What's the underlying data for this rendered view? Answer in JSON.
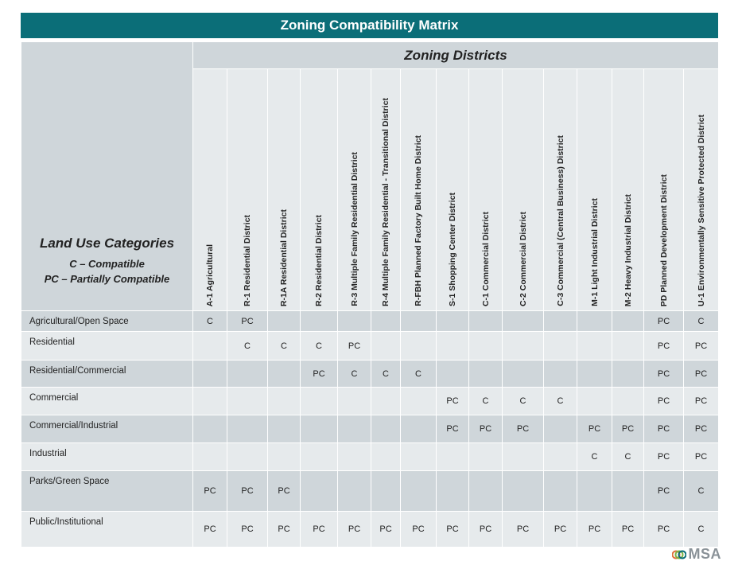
{
  "title": "Zoning Compatibility Matrix",
  "corner": {
    "heading": "Land Use Categories",
    "legend": [
      "C – Compatible",
      "PC – Partially Compatible"
    ]
  },
  "districts_heading": "Zoning Districts",
  "columns": [
    "A-1 Agricultural",
    "R-1  Residential District",
    "R-1A Residential District",
    "R-2  Residential District",
    "R-3  Multiple Family Residential District",
    "R-4  Multiple Family Residential - Transitional District",
    "R-FBH  Planned Factory Built Home District",
    "S-1  Shopping Center District",
    "C-1  Commercial District",
    "C-2  Commercial District",
    "C-3  Commercial (Central Business) District",
    "M-1  Light Industrial District",
    "M-2  Heavy Industrial District",
    "PD  Planned Development District",
    "U-1  Environmentally Sensitive Protected District"
  ],
  "rows": [
    {
      "label": "Agricultural/Open Space",
      "cells": [
        "C",
        "PC",
        "",
        "",
        "",
        "",
        "",
        "",
        "",
        "",
        "",
        "",
        "",
        "PC",
        "C"
      ]
    },
    {
      "label": "Residential",
      "cells": [
        "",
        "C",
        "C",
        "C",
        "PC",
        "",
        "",
        "",
        "",
        "",
        "",
        "",
        "",
        "PC",
        "PC"
      ]
    },
    {
      "label": "Residential/Commercial",
      "cells": [
        "",
        "",
        "",
        "PC",
        "C",
        "C",
        "C",
        "",
        "",
        "",
        "",
        "",
        "",
        "PC",
        "PC"
      ]
    },
    {
      "label": "Commercial",
      "cells": [
        "",
        "",
        "",
        "",
        "",
        "",
        "",
        "PC",
        "C",
        "C",
        "C",
        "",
        "",
        "PC",
        "PC"
      ]
    },
    {
      "label": "Commercial/Industrial",
      "cells": [
        "",
        "",
        "",
        "",
        "",
        "",
        "",
        "PC",
        "PC",
        "PC",
        "",
        "PC",
        "PC",
        "PC",
        "PC"
      ]
    },
    {
      "label": "Industrial",
      "cells": [
        "",
        "",
        "",
        "",
        "",
        "",
        "",
        "",
        "",
        "",
        "",
        "C",
        "C",
        "PC",
        "PC"
      ]
    },
    {
      "label": "Parks/Green Space",
      "cells": [
        "PC",
        "PC",
        "PC",
        "",
        "",
        "",
        "",
        "",
        "",
        "",
        "",
        "",
        "",
        "PC",
        "C"
      ]
    },
    {
      "label": "Public/Institutional",
      "cells": [
        "PC",
        "PC",
        "PC",
        "PC",
        "PC",
        "PC",
        "PC",
        "PC",
        "PC",
        "PC",
        "PC",
        "PC",
        "PC",
        "PC",
        "C"
      ]
    }
  ],
  "logo": {
    "text": "MSA",
    "colors": [
      "#e0703a",
      "#7cb342",
      "#0b6e78"
    ]
  }
}
